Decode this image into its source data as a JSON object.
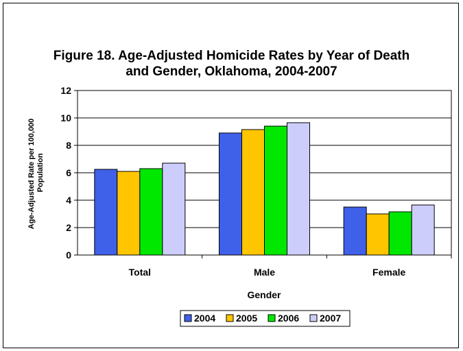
{
  "chart_data": {
    "type": "bar",
    "title_line1": "Figure 18. Age-Adjusted Homicide Rates by Year of Death",
    "title_line2": "and Gender, Oklahoma, 2004-2007",
    "xlabel": "Gender",
    "ylabel_line1": "Age-Adjusted Rate per 100,000",
    "ylabel_line2": "Population",
    "categories": [
      "Total",
      "Male",
      "Female"
    ],
    "series": [
      {
        "name": "2004",
        "color": "#3f60e8",
        "values": [
          6.25,
          8.9,
          3.5
        ]
      },
      {
        "name": "2005",
        "color": "#ffc600",
        "values": [
          6.1,
          9.15,
          3.0
        ]
      },
      {
        "name": "2006",
        "color": "#00e800",
        "values": [
          6.3,
          9.4,
          3.15
        ]
      },
      {
        "name": "2007",
        "color": "#cccdfa",
        "values": [
          6.7,
          9.65,
          3.65
        ]
      }
    ],
    "ylim": [
      0,
      12
    ],
    "yticks": [
      0,
      2,
      4,
      6,
      8,
      10,
      12
    ],
    "grid": true,
    "legend_position": "bottom"
  }
}
